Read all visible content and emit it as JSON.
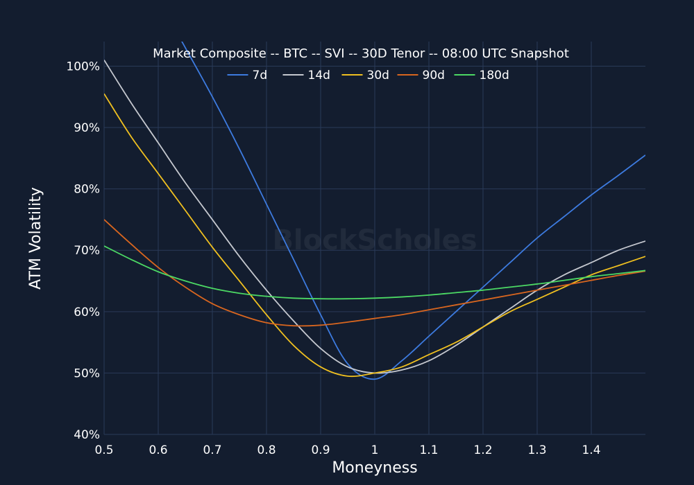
{
  "watermark": "BlockScholes",
  "chart_data": {
    "type": "line",
    "title": "Market Composite -- BTC -- SVI -- 30D Tenor -- 08:00 UTC Snapshot",
    "xlabel": "Moneyness",
    "ylabel": "ATM Volatility",
    "xlim": [
      0.5,
      1.5
    ],
    "ylim": [
      0.4,
      1.04
    ],
    "x_ticks": [
      0.5,
      0.6,
      0.7,
      0.8,
      0.9,
      1.0,
      1.1,
      1.2,
      1.3,
      1.4
    ],
    "x_tick_labels": [
      "0.5",
      "0.6",
      "0.7",
      "0.8",
      "0.9",
      "1",
      "1.1",
      "1.2",
      "1.3",
      "1.4"
    ],
    "y_ticks": [
      0.4,
      0.5,
      0.6,
      0.7,
      0.8,
      0.9,
      1.0
    ],
    "y_tick_labels": [
      "40%",
      "50%",
      "60%",
      "70%",
      "80%",
      "90%",
      "100%"
    ],
    "grid": true,
    "legend_position": "top-center",
    "x": [
      0.5,
      0.55,
      0.6,
      0.65,
      0.7,
      0.75,
      0.8,
      0.85,
      0.9,
      0.95,
      1.0,
      1.05,
      1.1,
      1.15,
      1.2,
      1.25,
      1.3,
      1.35,
      1.4,
      1.45,
      1.5
    ],
    "series": [
      {
        "name": "7d",
        "color": "#3d7be0",
        "values": [
          null,
          null,
          1.11,
          1.03,
          0.95,
          0.865,
          0.775,
          0.685,
          0.595,
          0.515,
          0.49,
          0.52,
          0.56,
          0.6,
          0.64,
          0.68,
          0.72,
          0.755,
          0.79,
          0.822,
          0.855
        ]
      },
      {
        "name": "14d",
        "color": "#c5c8cf",
        "values": [
          1.01,
          0.94,
          0.875,
          0.81,
          0.75,
          0.69,
          0.635,
          0.585,
          0.54,
          0.51,
          0.5,
          0.505,
          0.52,
          0.545,
          0.575,
          0.605,
          0.635,
          0.66,
          0.68,
          0.7,
          0.715
        ]
      },
      {
        "name": "30d",
        "color": "#f0c020",
        "values": [
          0.955,
          0.885,
          0.825,
          0.765,
          0.705,
          0.65,
          0.595,
          0.545,
          0.51,
          0.495,
          0.5,
          0.51,
          0.53,
          0.55,
          0.575,
          0.6,
          0.62,
          0.64,
          0.66,
          0.675,
          0.69
        ]
      },
      {
        "name": "90d",
        "color": "#d9661f",
        "values": [
          0.75,
          0.71,
          0.672,
          0.64,
          0.613,
          0.595,
          0.582,
          0.577,
          0.578,
          0.583,
          0.589,
          0.595,
          0.603,
          0.611,
          0.619,
          0.627,
          0.635,
          0.643,
          0.651,
          0.659,
          0.666
        ]
      },
      {
        "name": "180d",
        "color": "#4cd964",
        "values": [
          0.707,
          0.685,
          0.665,
          0.65,
          0.638,
          0.63,
          0.625,
          0.622,
          0.621,
          0.621,
          0.622,
          0.624,
          0.627,
          0.631,
          0.635,
          0.64,
          0.645,
          0.651,
          0.657,
          0.662,
          0.667
        ]
      }
    ]
  }
}
